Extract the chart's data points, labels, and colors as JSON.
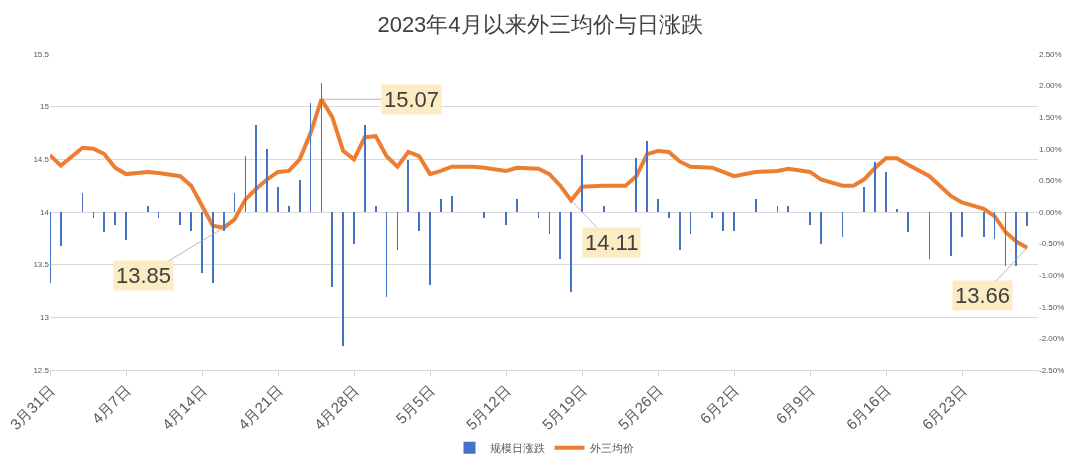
{
  "chart_data": {
    "type": "bar",
    "title": "2023年4月以来外三均价与日涨跌",
    "x": [
      "2023-03-31",
      "2023-04-01",
      "2023-04-03",
      "2023-04-04",
      "2023-04-05",
      "2023-04-06",
      "2023-04-07",
      "2023-04-09",
      "2023-04-10",
      "2023-04-12",
      "2023-04-13",
      "2023-04-14",
      "2023-04-15",
      "2023-04-16",
      "2023-04-17",
      "2023-04-18",
      "2023-04-19",
      "2023-04-20",
      "2023-04-21",
      "2023-04-22",
      "2023-04-23",
      "2023-04-24",
      "2023-04-25",
      "2023-04-26",
      "2023-04-27",
      "2023-04-28",
      "2023-04-29",
      "2023-04-30",
      "2023-05-01",
      "2023-05-02",
      "2023-05-03",
      "2023-05-04",
      "2023-05-05",
      "2023-05-06",
      "2023-05-07",
      "2023-05-09",
      "2023-05-10",
      "2023-05-12",
      "2023-05-13",
      "2023-05-15",
      "2023-05-16",
      "2023-05-17",
      "2023-05-18",
      "2023-05-19",
      "2023-05-21",
      "2023-05-23",
      "2023-05-24",
      "2023-05-25",
      "2023-05-26",
      "2023-05-27",
      "2023-05-28",
      "2023-05-29",
      "2023-05-31",
      "2023-06-01",
      "2023-06-02",
      "2023-06-04",
      "2023-06-06",
      "2023-06-07",
      "2023-06-09",
      "2023-06-10",
      "2023-06-12",
      "2023-06-13",
      "2023-06-14",
      "2023-06-15",
      "2023-06-16",
      "2023-06-17",
      "2023-06-18",
      "2023-06-20",
      "2023-06-22",
      "2023-06-23",
      "2023-06-25",
      "2023-06-26",
      "2023-06-27",
      "2023-06-28",
      "2023-06-29"
    ],
    "series": [
      {
        "name": "规模日涨跌",
        "axis": "y2",
        "color": "#4472c4",
        "values": [
          -1.13,
          -0.53,
          0.3,
          -0.1,
          -0.31,
          -0.2,
          -0.45,
          0.1,
          -0.1,
          -0.2,
          -0.3,
          -0.97,
          -1.13,
          -0.3,
          0.3,
          0.88,
          1.37,
          0.99,
          0.4,
          0.1,
          0.5,
          1.73,
          2.04,
          -1.18,
          -2.12,
          -0.5,
          1.38,
          0.1,
          -1.34,
          -0.6,
          0.83,
          -0.3,
          -1.16,
          0.2,
          0.25,
          null,
          -0.1,
          -0.2,
          0.2,
          -0.1,
          -0.35,
          -0.75,
          -1.26,
          0.9,
          0.1,
          null,
          0.86,
          1.12,
          0.2,
          -0.1,
          -0.6,
          -0.35,
          -0.1,
          -0.3,
          -0.3,
          0.2,
          0.1,
          0.1,
          -0.2,
          -0.5,
          -0.4,
          null,
          0.4,
          0.79,
          0.63,
          0.05,
          -0.31,
          -0.75,
          -0.69,
          -0.4,
          -0.4,
          -0.42,
          -0.85,
          -0.85,
          -0.22
        ]
      },
      {
        "name": "外三均价",
        "type": "line",
        "color": "#ed7d31",
        "values": [
          14.54,
          14.44,
          14.61,
          14.6,
          14.55,
          14.42,
          14.36,
          14.38,
          14.37,
          14.34,
          14.25,
          14.06,
          13.87,
          13.85,
          13.93,
          14.12,
          14.22,
          14.31,
          14.38,
          14.39,
          14.5,
          14.75,
          15.07,
          14.9,
          14.58,
          14.5,
          14.71,
          14.72,
          14.53,
          14.43,
          14.57,
          14.53,
          14.36,
          14.39,
          14.43,
          14.43,
          14.42,
          14.39,
          14.42,
          14.41,
          14.36,
          14.25,
          14.11,
          14.24,
          14.25,
          14.25,
          14.34,
          14.55,
          14.58,
          14.57,
          14.48,
          14.43,
          14.42,
          14.38,
          14.34,
          14.38,
          14.39,
          14.41,
          14.38,
          14.31,
          14.25,
          14.25,
          14.31,
          14.42,
          14.51,
          14.51,
          14.45,
          14.34,
          14.15,
          14.09,
          14.03,
          13.96,
          13.81,
          13.72,
          13.66
        ]
      }
    ],
    "xlim": [
      "2023-03-31",
      "2023-06-30"
    ],
    "xticks": [
      {
        "value": "2023-03-31",
        "label": "3月31日"
      },
      {
        "value": "2023-04-07",
        "label": "4月7日"
      },
      {
        "value": "2023-04-14",
        "label": "4月14日"
      },
      {
        "value": "2023-04-21",
        "label": "4月21日"
      },
      {
        "value": "2023-04-28",
        "label": "4月28日"
      },
      {
        "value": "2023-05-05",
        "label": "5月5日"
      },
      {
        "value": "2023-05-12",
        "label": "5月12日"
      },
      {
        "value": "2023-05-19",
        "label": "5月19日"
      },
      {
        "value": "2023-05-26",
        "label": "5月26日"
      },
      {
        "value": "2023-06-02",
        "label": "6月2日"
      },
      {
        "value": "2023-06-09",
        "label": "6月9日"
      },
      {
        "value": "2023-06-16",
        "label": "6月16日"
      },
      {
        "value": "2023-06-23",
        "label": "6月23日"
      }
    ],
    "ylim": [
      12.5,
      15.5
    ],
    "yticks": [
      12.5,
      13,
      13.5,
      14,
      14.5,
      15,
      15.5
    ],
    "y2lim": [
      -2.5,
      2.5
    ],
    "y2ticks": [
      {
        "value": -2.5,
        "label": "-2.50%"
      },
      {
        "value": -2,
        "label": "-2.00%"
      },
      {
        "value": -1.5,
        "label": "-1.50%"
      },
      {
        "value": -1,
        "label": "-1.00%"
      },
      {
        "value": -0.5,
        "label": "-0.50%"
      },
      {
        "value": 0,
        "label": "0.00%"
      },
      {
        "value": 0.5,
        "label": "0.50%"
      },
      {
        "value": 1,
        "label": "1.00%"
      },
      {
        "value": 1.5,
        "label": "1.50%"
      },
      {
        "value": 2,
        "label": "2.00%"
      },
      {
        "value": 2.5,
        "label": "2.50%"
      }
    ],
    "annotations": [
      {
        "text": "15.07",
        "x": "2023-04-25",
        "y": 15.07
      },
      {
        "text": "13.85",
        "x": "2023-04-16",
        "y": 13.85
      },
      {
        "text": "14.11",
        "x": "2023-05-18",
        "y": 14.11
      },
      {
        "text": "13.66",
        "x": "2023-06-29",
        "y": 13.66
      }
    ],
    "grid": "y",
    "legend": "bottom",
    "marker": "none",
    "line_style": "solid"
  }
}
